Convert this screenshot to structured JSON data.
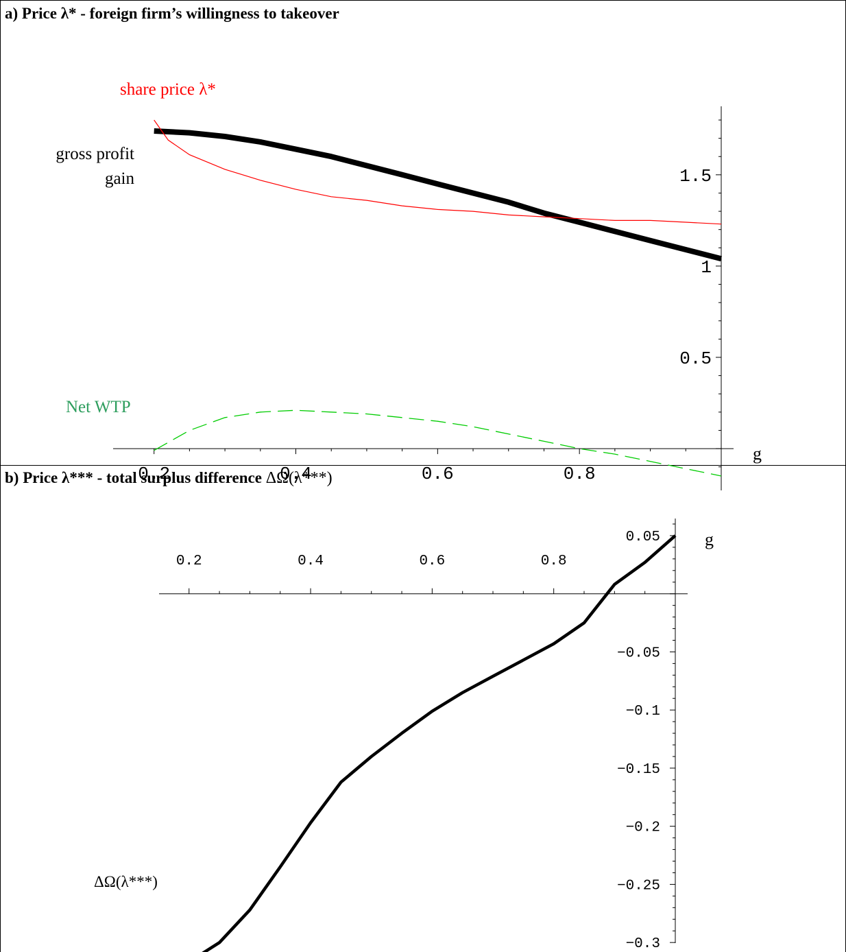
{
  "panels": [
    {
      "title": "a) Price λ* - foreign firm’s willingness to takeover",
      "chart": {
        "type": "line",
        "xlabel": "g",
        "xticks": [
          "0.2",
          "0.4",
          "0.6",
          "0.8"
        ],
        "yticks": [
          "0.5",
          "1",
          "1.5"
        ],
        "xlim": [
          0.18,
          1.0
        ],
        "ylim": [
          -0.15,
          1.8
        ],
        "annotations": {
          "share_price": "share price λ*",
          "gross_profit_line1": "gross profit",
          "gross_profit_line2": "gain",
          "net_wtp": "Net WTP"
        },
        "colors": {
          "share_price": "#ff0000",
          "gross_profit": "#000000",
          "net_wtp": "#00cc00",
          "net_wtp_label": "#2e9e5e"
        }
      }
    },
    {
      "title_text": "b) Price λ*** - total surplus difference ",
      "title_math": "ΔΩ(λ***)",
      "chart": {
        "type": "line",
        "xlabel": "g",
        "xticks": [
          "0.2",
          "0.4",
          "0.6",
          "0.8"
        ],
        "yticks": [
          "0.05",
          "−0.05",
          "−0.1",
          "−0.15",
          "−0.2",
          "−0.25",
          "−0.3"
        ],
        "xlim": [
          0.18,
          1.0
        ],
        "ylim": [
          -0.33,
          0.06
        ],
        "annotations": {
          "curve_label": "ΔΩ(λ***)"
        }
      }
    }
  ],
  "chart_data": [
    {
      "type": "line",
      "title": "a) Price λ* - foreign firm’s willingness to takeover",
      "xlabel": "g",
      "ylabel": "",
      "xlim": [
        0.18,
        1.0
      ],
      "ylim": [
        -0.15,
        1.8
      ],
      "series": [
        {
          "name": "share price λ*",
          "x": [
            0.2,
            0.22,
            0.25,
            0.3,
            0.35,
            0.4,
            0.45,
            0.5,
            0.55,
            0.6,
            0.65,
            0.7,
            0.75,
            0.8,
            0.85,
            0.9,
            0.95,
            1.0
          ],
          "y": [
            1.8,
            1.69,
            1.61,
            1.53,
            1.47,
            1.42,
            1.38,
            1.36,
            1.33,
            1.31,
            1.3,
            1.28,
            1.27,
            1.26,
            1.25,
            1.25,
            1.24,
            1.23
          ]
        },
        {
          "name": "gross profit gain",
          "x": [
            0.2,
            0.25,
            0.3,
            0.35,
            0.4,
            0.45,
            0.5,
            0.55,
            0.6,
            0.65,
            0.7,
            0.75,
            0.8,
            0.85,
            0.9,
            0.95,
            1.0
          ],
          "y": [
            1.74,
            1.73,
            1.71,
            1.68,
            1.64,
            1.6,
            1.55,
            1.5,
            1.45,
            1.4,
            1.35,
            1.29,
            1.24,
            1.19,
            1.14,
            1.09,
            1.04
          ]
        },
        {
          "name": "Net WTP",
          "x": [
            0.2,
            0.25,
            0.3,
            0.35,
            0.4,
            0.45,
            0.5,
            0.55,
            0.6,
            0.65,
            0.7,
            0.75,
            0.8,
            0.85,
            0.9,
            0.95,
            1.0
          ],
          "y": [
            -0.01,
            0.1,
            0.17,
            0.2,
            0.21,
            0.2,
            0.19,
            0.17,
            0.15,
            0.12,
            0.08,
            0.04,
            0.0,
            -0.03,
            -0.07,
            -0.11,
            -0.15
          ]
        }
      ]
    },
    {
      "type": "line",
      "title": "b) Price λ*** - total surplus difference ΔΩ(λ***)",
      "xlabel": "g",
      "ylabel": "",
      "xlim": [
        0.18,
        1.0
      ],
      "ylim": [
        -0.33,
        0.06
      ],
      "series": [
        {
          "name": "ΔΩ(λ***)",
          "x": [
            0.2,
            0.22,
            0.25,
            0.3,
            0.35,
            0.4,
            0.45,
            0.5,
            0.55,
            0.6,
            0.65,
            0.7,
            0.75,
            0.8,
            0.85,
            0.9,
            0.95,
            1.0
          ],
          "y": [
            -0.31,
            -0.31,
            -0.3,
            -0.272,
            -0.235,
            -0.197,
            -0.162,
            -0.14,
            -0.12,
            -0.101,
            -0.085,
            -0.071,
            -0.057,
            -0.043,
            -0.025,
            0.008,
            0.027,
            0.05
          ]
        }
      ]
    }
  ]
}
